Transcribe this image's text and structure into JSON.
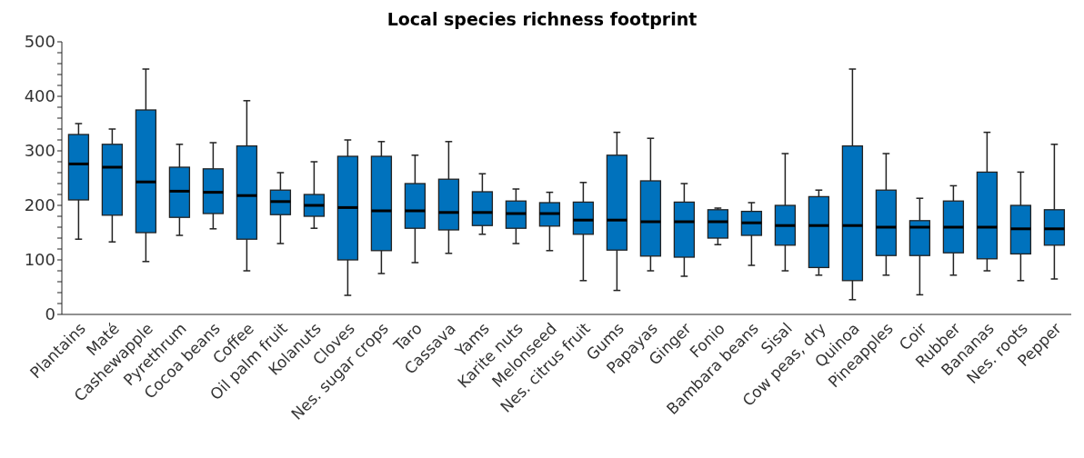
{
  "chart_data": {
    "type": "box",
    "title": "Local species richness footprint",
    "color": "#0072bd",
    "categories": [
      "Plantains",
      "Maté",
      "Cashewapple",
      "Pyrethrum",
      "Cocoa beans",
      "Coffee",
      "Oil palm fruit",
      "Kolanuts",
      "Cloves",
      "Nes. sugar crops",
      "Taro",
      "Cassava",
      "Yams",
      "Karite nuts",
      "Melonseed",
      "Nes. citrus fruit",
      "Gums",
      "Papayas",
      "Ginger",
      "Fonio",
      "Bambara beans",
      "Sisal",
      "Cow peas, dry",
      "Quinoa",
      "Pineapples",
      "Coir",
      "Rubber",
      "Bananas",
      "Nes. roots",
      "Pepper"
    ],
    "boxes": [
      {
        "low": 138,
        "q1": 210,
        "median": 276,
        "q3": 330,
        "high": 350
      },
      {
        "low": 133,
        "q1": 182,
        "median": 270,
        "q3": 312,
        "high": 340
      },
      {
        "low": 97,
        "q1": 150,
        "median": 243,
        "q3": 375,
        "high": 450
      },
      {
        "low": 145,
        "q1": 178,
        "median": 226,
        "q3": 270,
        "high": 312
      },
      {
        "low": 157,
        "q1": 185,
        "median": 224,
        "q3": 267,
        "high": 315
      },
      {
        "low": 80,
        "q1": 138,
        "median": 218,
        "q3": 309,
        "high": 392
      },
      {
        "low": 130,
        "q1": 183,
        "median": 207,
        "q3": 228,
        "high": 260
      },
      {
        "low": 158,
        "q1": 180,
        "median": 200,
        "q3": 220,
        "high": 280
      },
      {
        "low": 35,
        "q1": 100,
        "median": 196,
        "q3": 290,
        "high": 320
      },
      {
        "low": 75,
        "q1": 117,
        "median": 190,
        "q3": 290,
        "high": 317
      },
      {
        "low": 95,
        "q1": 158,
        "median": 190,
        "q3": 240,
        "high": 292
      },
      {
        "low": 112,
        "q1": 155,
        "median": 187,
        "q3": 248,
        "high": 317
      },
      {
        "low": 147,
        "q1": 163,
        "median": 187,
        "q3": 225,
        "high": 258
      },
      {
        "low": 130,
        "q1": 158,
        "median": 185,
        "q3": 208,
        "high": 230
      },
      {
        "low": 117,
        "q1": 162,
        "median": 185,
        "q3": 205,
        "high": 224
      },
      {
        "low": 62,
        "q1": 147,
        "median": 173,
        "q3": 206,
        "high": 242
      },
      {
        "low": 44,
        "q1": 118,
        "median": 173,
        "q3": 292,
        "high": 334
      },
      {
        "low": 80,
        "q1": 107,
        "median": 170,
        "q3": 245,
        "high": 323
      },
      {
        "low": 70,
        "q1": 105,
        "median": 170,
        "q3": 206,
        "high": 240
      },
      {
        "low": 128,
        "q1": 140,
        "median": 170,
        "q3": 192,
        "high": 195
      },
      {
        "low": 90,
        "q1": 145,
        "median": 168,
        "q3": 189,
        "high": 205
      },
      {
        "low": 80,
        "q1": 127,
        "median": 163,
        "q3": 200,
        "high": 295
      },
      {
        "low": 72,
        "q1": 86,
        "median": 163,
        "q3": 216,
        "high": 228
      },
      {
        "low": 27,
        "q1": 62,
        "median": 163,
        "q3": 309,
        "high": 450
      },
      {
        "low": 72,
        "q1": 108,
        "median": 160,
        "q3": 228,
        "high": 295
      },
      {
        "low": 36,
        "q1": 108,
        "median": 160,
        "q3": 172,
        "high": 213
      },
      {
        "low": 72,
        "q1": 113,
        "median": 160,
        "q3": 208,
        "high": 236
      },
      {
        "low": 80,
        "q1": 102,
        "median": 160,
        "q3": 261,
        "high": 334
      },
      {
        "low": 62,
        "q1": 111,
        "median": 157,
        "q3": 200,
        "high": 261
      },
      {
        "low": 65,
        "q1": 127,
        "median": 157,
        "q3": 192,
        "high": 312
      }
    ],
    "ylim": [
      0,
      500
    ],
    "yticks": [
      0,
      {
        "value": 20,
        "label": null
      },
      {
        "value": 40,
        "label": null
      },
      {
        "value": 60,
        "label": null
      },
      {
        "value": 80,
        "label": null
      },
      100,
      {
        "value": 120,
        "label": null
      },
      {
        "value": 140,
        "label": null
      },
      {
        "value": 160,
        "label": null
      },
      {
        "value": 180,
        "label": null
      },
      200,
      {
        "value": 220,
        "label": null
      },
      {
        "value": 240,
        "label": null
      },
      {
        "value": 260,
        "label": null
      },
      {
        "value": 280,
        "label": null
      },
      300,
      {
        "value": 320,
        "label": null
      },
      {
        "value": 340,
        "label": null
      },
      {
        "value": 360,
        "label": null
      },
      {
        "value": 380,
        "label": null
      },
      400,
      {
        "value": 420,
        "label": null
      },
      {
        "value": 440,
        "label": null
      },
      {
        "value": 460,
        "label": null
      },
      {
        "value": 480,
        "label": null
      },
      500
    ]
  }
}
